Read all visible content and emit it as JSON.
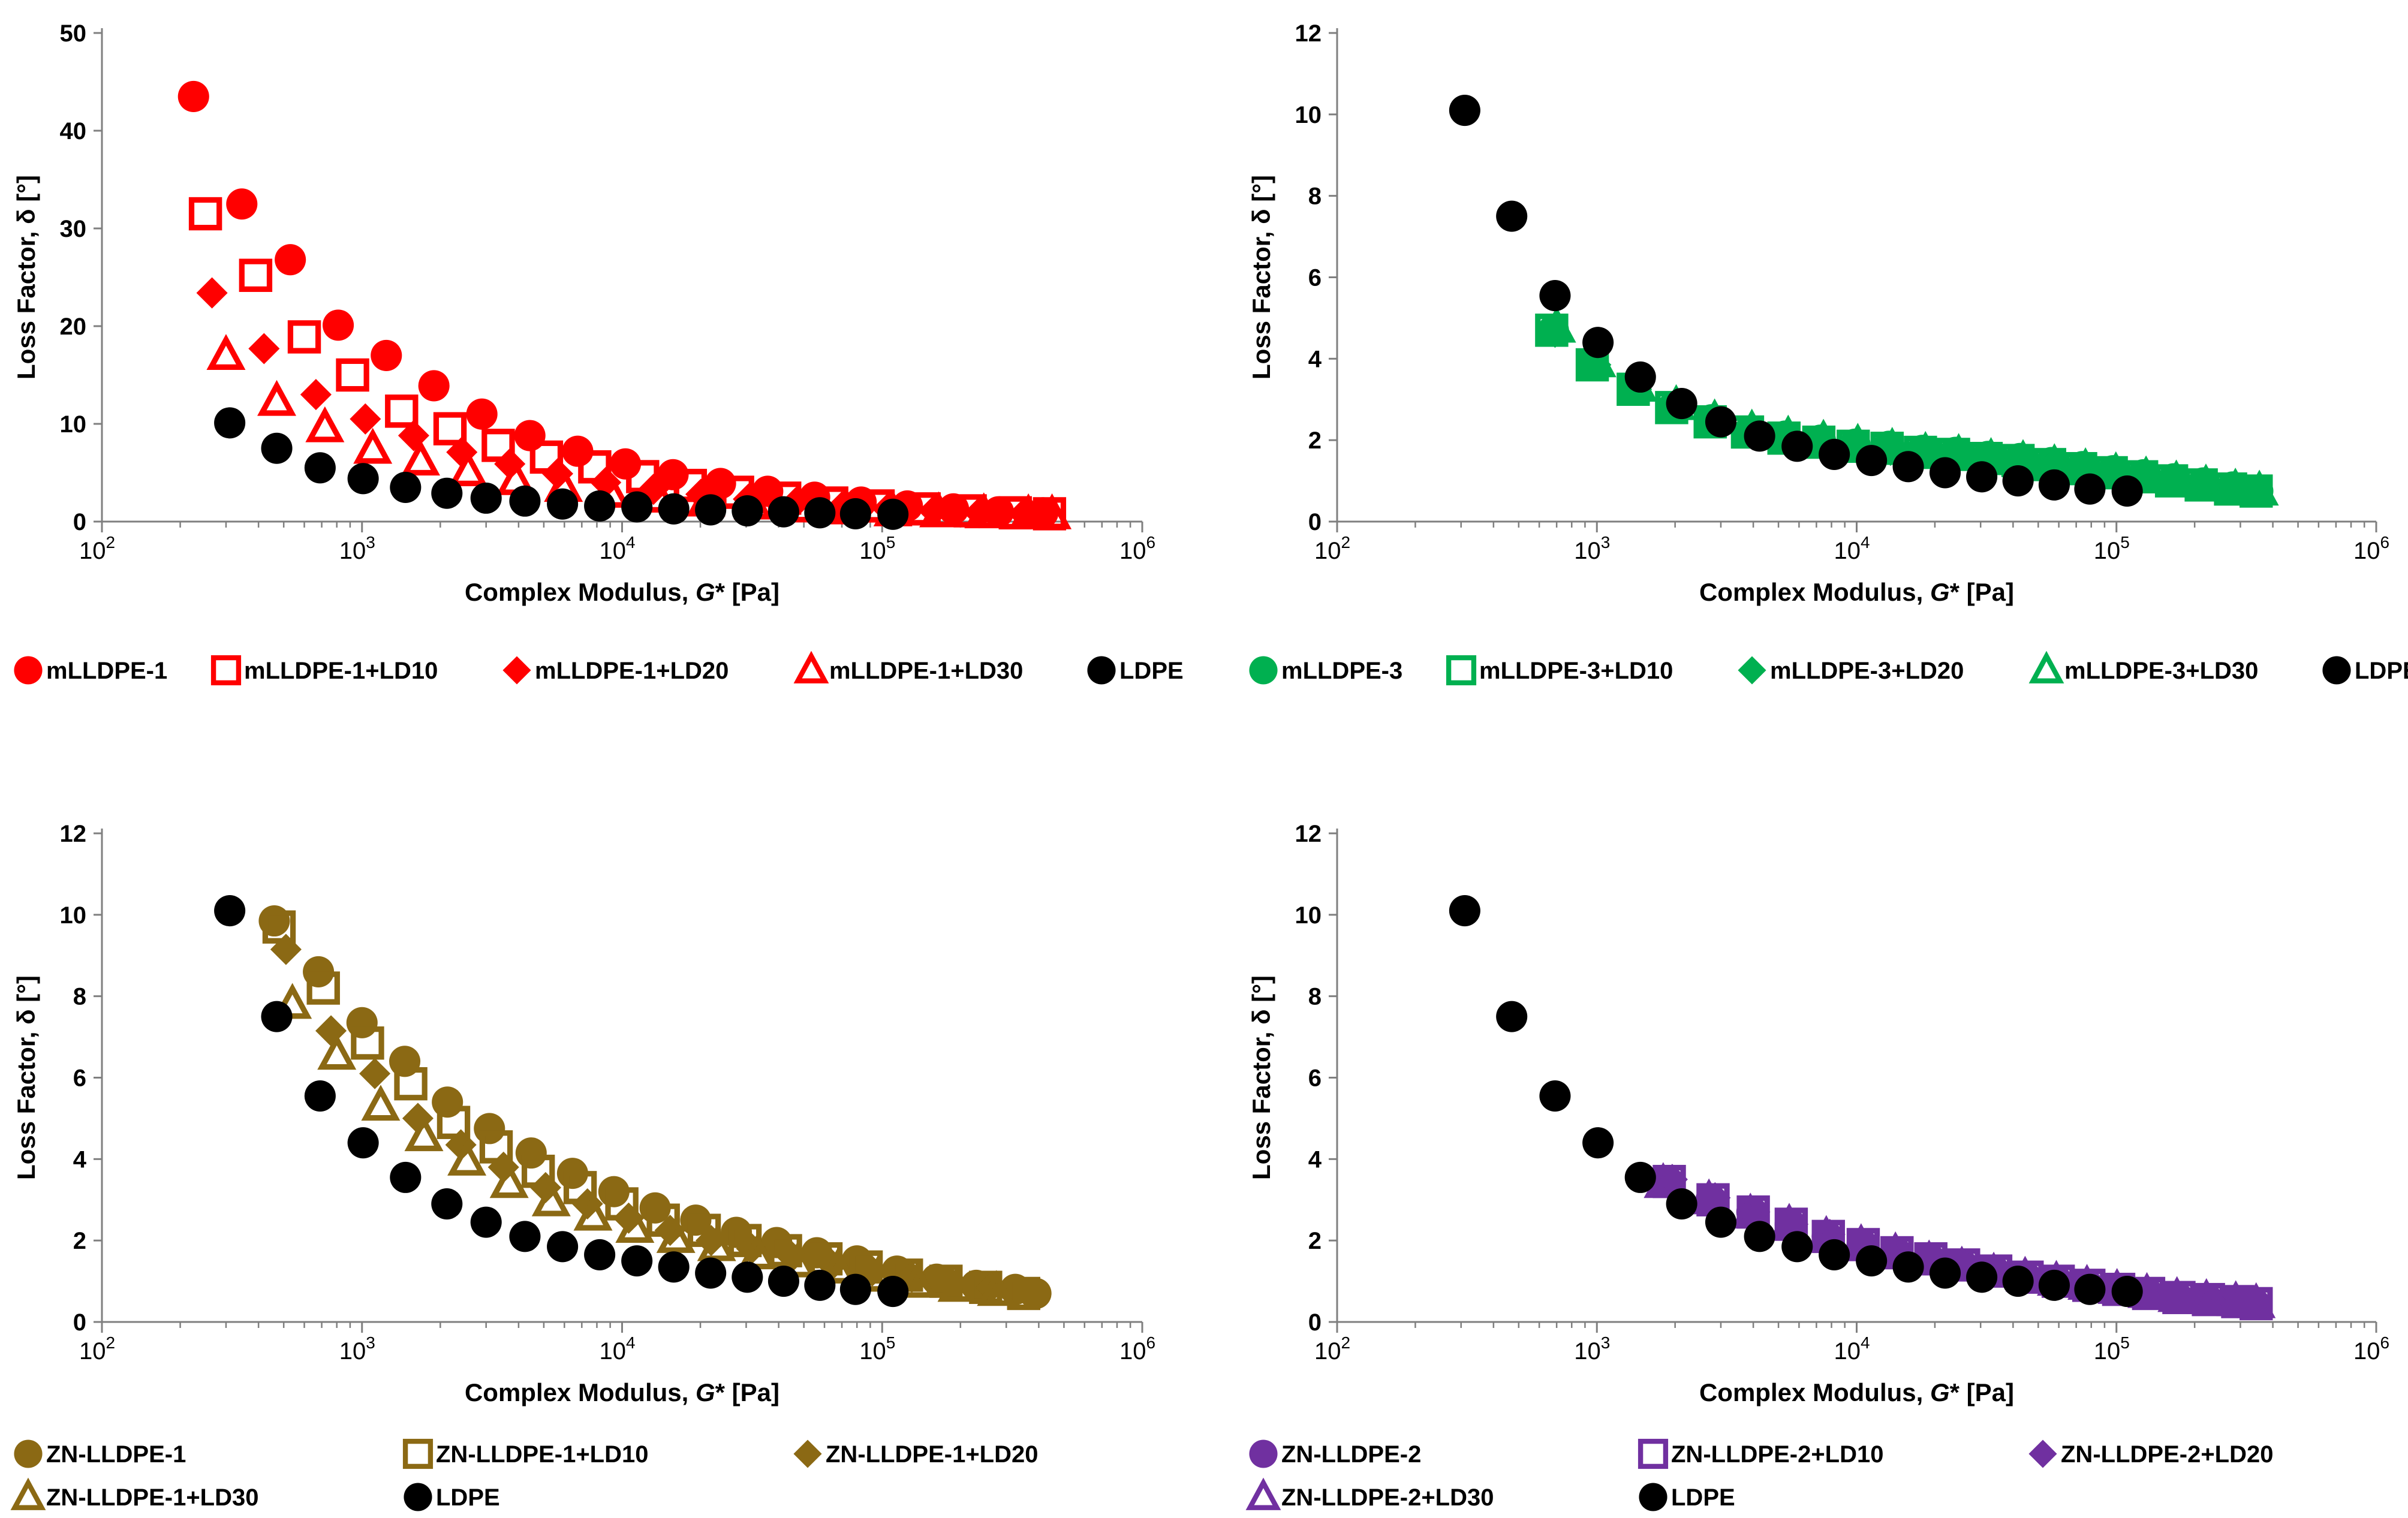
{
  "axes": {
    "xlabel_prefix": "Complex Modulus, ",
    "xlabel_var": "G",
    "xlabel_suffix": "* [Pa]",
    "ylabel": "Loss Factor, δ [°]",
    "x_tick_base": "10",
    "x_tick_exponents": [
      "2",
      "3",
      "4",
      "5",
      "6"
    ]
  },
  "chart_data": [
    {
      "type": "scatter",
      "panel": "top-left",
      "xscale": "log",
      "xlim": [
        100,
        1000000
      ],
      "ylim": [
        0,
        50
      ],
      "yticks": [
        0,
        10,
        20,
        30,
        40,
        50
      ],
      "xlabel": "Complex Modulus, G* [Pa]",
      "ylabel": "Loss Factor, δ [°]",
      "legend_columns": 5,
      "series": [
        {
          "name": "mLLDPE-1",
          "color": "#ff0000",
          "marker": "circle",
          "x": [
            225,
            345,
            530,
            810,
            1240,
            1890,
            2890,
            4420,
            6750,
            10300,
            15700,
            23900,
            36300,
            55000,
            83000,
            125000,
            188000,
            280000,
            415000
          ],
          "y": [
            43.5,
            32.5,
            26.8,
            20.1,
            17.0,
            13.9,
            11.0,
            8.8,
            7.2,
            5.9,
            4.8,
            3.9,
            3.1,
            2.5,
            2.0,
            1.6,
            1.3,
            1.0,
            0.9
          ]
        },
        {
          "name": "mLLDPE-1+LD10",
          "color": "#ff0000",
          "marker": "square-open",
          "x": [
            250,
            390,
            600,
            920,
            1420,
            2180,
            3340,
            5120,
            7850,
            12000,
            18300,
            27800,
            42200,
            64000,
            96500,
            145000,
            218000,
            325000,
            440000
          ],
          "y": [
            31.5,
            25.2,
            18.9,
            15.0,
            11.3,
            9.5,
            7.8,
            6.6,
            5.6,
            4.6,
            3.7,
            3.0,
            2.4,
            1.9,
            1.6,
            1.3,
            1.1,
            0.9,
            0.8
          ]
        },
        {
          "name": "mLLDPE-1+LD20",
          "color": "#ff0000",
          "marker": "diamond",
          "x": [
            265,
            420,
            665,
            1030,
            1580,
            2420,
            3700,
            5650,
            8650,
            13200,
            20100,
            30600,
            46400,
            70000,
            105000,
            158000,
            236000,
            350000
          ],
          "y": [
            23.4,
            17.7,
            13.0,
            10.5,
            8.8,
            7.1,
            5.9,
            4.9,
            4.0,
            3.3,
            2.8,
            2.3,
            1.9,
            1.5,
            1.3,
            1.1,
            0.9,
            0.8
          ]
        },
        {
          "name": "mLLDPE-1+LD30",
          "color": "#ff0000",
          "marker": "triangle-open",
          "x": [
            300,
            470,
            720,
            1100,
            1680,
            2560,
            3900,
            5950,
            9050,
            13800,
            21000,
            31900,
            48300,
            73000,
            110000,
            165000,
            246000,
            365000,
            450000
          ],
          "y": [
            17.0,
            12.3,
            9.6,
            7.4,
            6.2,
            5.1,
            4.2,
            3.5,
            2.9,
            2.4,
            2.0,
            1.7,
            1.4,
            1.2,
            1.0,
            0.9,
            0.8,
            0.7,
            0.7
          ]
        },
        {
          "name": "LDPE",
          "color": "#000000",
          "marker": "circle",
          "x": [
            310,
            470,
            690,
            1010,
            1470,
            2120,
            3000,
            4230,
            5900,
            8200,
            11400,
            15800,
            21900,
            30300,
            41800,
            57600,
            79000,
            110000
          ],
          "y": [
            10.1,
            7.5,
            5.5,
            4.4,
            3.5,
            2.9,
            2.4,
            2.1,
            1.8,
            1.6,
            1.5,
            1.3,
            1.2,
            1.1,
            1.0,
            0.9,
            0.8,
            0.75
          ]
        }
      ]
    },
    {
      "type": "scatter",
      "panel": "top-right",
      "xscale": "log",
      "xlim": [
        100,
        1000000
      ],
      "ylim": [
        0,
        12
      ],
      "yticks": [
        0,
        2,
        4,
        6,
        8,
        10,
        12
      ],
      "xlabel": "Complex Modulus, G* [Pa]",
      "ylabel": "Loss Factor, δ [°]",
      "legend_columns": 5,
      "series": [
        {
          "name": "mLLDPE-3",
          "color": "#00b050",
          "marker": "circle",
          "x": [
            680,
            970,
            1400,
            1960,
            2760,
            3840,
            5300,
            7250,
            9850,
            13300,
            17900,
            24000,
            32000,
            42500,
            56200,
            74000,
            97000,
            127000,
            166000,
            216000,
            280000,
            350000
          ],
          "y": [
            4.7,
            3.9,
            3.3,
            2.8,
            2.5,
            2.2,
            2.1,
            2.0,
            1.9,
            1.85,
            1.75,
            1.7,
            1.6,
            1.55,
            1.45,
            1.35,
            1.25,
            1.15,
            1.05,
            0.95,
            0.85,
            0.75
          ]
        },
        {
          "name": "mLLDPE-3+LD10",
          "color": "#00b050",
          "marker": "square-open",
          "x": [
            670,
            960,
            1380,
            1940,
            2730,
            3800,
            5250,
            7150,
            9700,
            13100,
            17600,
            23600,
            31500,
            41800,
            55300,
            72800,
            95500,
            125000,
            163000,
            212000,
            275000,
            345000
          ],
          "y": [
            4.7,
            3.85,
            3.25,
            2.8,
            2.45,
            2.2,
            2.05,
            1.95,
            1.85,
            1.8,
            1.7,
            1.65,
            1.55,
            1.5,
            1.4,
            1.3,
            1.2,
            1.1,
            1.0,
            0.9,
            0.8,
            0.75
          ]
        },
        {
          "name": "mLLDPE-3+LD20",
          "color": "#00b050",
          "marker": "diamond",
          "x": [
            690,
            990,
            1420,
            1990,
            2800,
            3900,
            5380,
            7350,
            9990,
            13500,
            18200,
            24400,
            32500,
            43200,
            57000,
            75200,
            98500,
            129000,
            168000,
            219000,
            284000
          ],
          "y": [
            4.65,
            3.85,
            3.25,
            2.8,
            2.45,
            2.2,
            2.05,
            1.95,
            1.85,
            1.75,
            1.7,
            1.65,
            1.55,
            1.5,
            1.4,
            1.3,
            1.2,
            1.1,
            1.0,
            0.9,
            0.8
          ]
        },
        {
          "name": "mLLDPE-3+LD30",
          "color": "#00b050",
          "marker": "triangle-open",
          "x": [
            700,
            1000,
            1440,
            2020,
            2840,
            3950,
            5450,
            7450,
            10100,
            13700,
            18400,
            24700,
            32900,
            43700,
            57700,
            76000,
            99500,
            130000,
            170000,
            221000,
            287000,
            355000
          ],
          "y": [
            4.75,
            3.9,
            3.3,
            2.85,
            2.5,
            2.25,
            2.1,
            2.0,
            1.9,
            1.8,
            1.7,
            1.65,
            1.55,
            1.5,
            1.4,
            1.3,
            1.2,
            1.1,
            1.0,
            0.9,
            0.8,
            0.75
          ]
        },
        {
          "name": "LDPE",
          "color": "#000000",
          "marker": "circle",
          "x": [
            310,
            470,
            690,
            1010,
            1470,
            2120,
            3000,
            4230,
            5900,
            8200,
            11400,
            15800,
            21900,
            30300,
            41800,
            57600,
            79000,
            110000
          ],
          "y": [
            10.1,
            7.5,
            5.55,
            4.4,
            3.55,
            2.9,
            2.45,
            2.1,
            1.85,
            1.65,
            1.5,
            1.35,
            1.2,
            1.1,
            1.0,
            0.9,
            0.8,
            0.75
          ]
        }
      ]
    },
    {
      "type": "scatter",
      "panel": "bottom-left",
      "xscale": "log",
      "xlim": [
        100,
        1000000
      ],
      "ylim": [
        0,
        12
      ],
      "yticks": [
        0,
        2,
        4,
        6,
        8,
        10,
        12
      ],
      "xlabel": "Complex Modulus, G* [Pa]",
      "ylabel": "Loss Factor, δ [°]",
      "legend_columns": 3,
      "series": [
        {
          "name": "ZN-LLDPE-1",
          "color": "#8b6914",
          "marker": "circle",
          "x": [
            460,
            680,
            1000,
            1460,
            2130,
            3090,
            4470,
            6450,
            9300,
            13400,
            19200,
            27500,
            39300,
            56100,
            80000,
            114000,
            162000,
            230000,
            325000,
            390000
          ],
          "y": [
            9.85,
            8.6,
            7.35,
            6.4,
            5.4,
            4.75,
            4.15,
            3.65,
            3.2,
            2.8,
            2.5,
            2.2,
            1.95,
            1.7,
            1.5,
            1.25,
            1.05,
            0.9,
            0.8,
            0.7
          ]
        },
        {
          "name": "ZN-LLDPE-1+LD10",
          "color": "#8b6914",
          "marker": "square-open",
          "x": [
            480,
            710,
            1050,
            1540,
            2250,
            3280,
            4760,
            6900,
            9980,
            14400,
            20700,
            29700,
            42500,
            60800,
            86800,
            124000,
            176000,
            250000,
            350000
          ],
          "y": [
            9.7,
            8.2,
            6.85,
            5.85,
            4.9,
            4.3,
            3.7,
            3.3,
            2.9,
            2.5,
            2.25,
            2.0,
            1.75,
            1.55,
            1.35,
            1.15,
            1.0,
            0.85,
            0.7
          ]
        },
        {
          "name": "ZN-LLDPE-1+LD20",
          "color": "#8b6914",
          "marker": "diamond",
          "x": [
            510,
            760,
            1120,
            1640,
            2400,
            3500,
            5080,
            7360,
            10600,
            15300,
            22000,
            31500,
            45000,
            64200,
            91500,
            130000,
            185000,
            262000,
            365000
          ],
          "y": [
            9.15,
            7.15,
            6.1,
            5.0,
            4.35,
            3.8,
            3.3,
            2.9,
            2.55,
            2.25,
            2.0,
            1.8,
            1.6,
            1.4,
            1.25,
            1.1,
            0.95,
            0.85,
            0.7
          ]
        },
        {
          "name": "ZN-LLDPE-1+LD30",
          "color": "#8b6914",
          "marker": "triangle-open",
          "x": [
            540,
            800,
            1180,
            1730,
            2530,
            3680,
            5340,
            7730,
            11200,
            16100,
            23100,
            33100,
            47300,
            67500,
            96000,
            136000,
            194000,
            275000
          ],
          "y": [
            7.8,
            6.55,
            5.3,
            4.55,
            3.95,
            3.4,
            2.95,
            2.6,
            2.3,
            2.05,
            1.85,
            1.65,
            1.45,
            1.3,
            1.1,
            0.95,
            0.85,
            0.75
          ]
        },
        {
          "name": "LDPE",
          "color": "#000000",
          "marker": "circle",
          "x": [
            310,
            470,
            690,
            1010,
            1470,
            2120,
            3000,
            4230,
            5900,
            8200,
            11400,
            15800,
            21900,
            30300,
            41800,
            57600,
            79000,
            110000
          ],
          "y": [
            10.1,
            7.5,
            5.55,
            4.4,
            3.55,
            2.9,
            2.45,
            2.1,
            1.85,
            1.65,
            1.5,
            1.35,
            1.2,
            1.1,
            1.0,
            0.9,
            0.8,
            0.75
          ]
        }
      ]
    },
    {
      "type": "scatter",
      "panel": "bottom-right",
      "xscale": "log",
      "xlim": [
        100,
        1000000
      ],
      "ylim": [
        0,
        12
      ],
      "yticks": [
        0,
        2,
        4,
        6,
        8,
        10,
        12
      ],
      "xlabel": "Complex Modulus, G* [Pa]",
      "ylabel": "Loss Factor, δ [°]",
      "legend_columns": 3,
      "series": [
        {
          "name": "ZN-LLDPE-2",
          "color": "#7030a0",
          "marker": "circle",
          "x": [
            1850,
            2750,
            3950,
            5550,
            7700,
            10500,
            14200,
            19100,
            25500,
            33900,
            44800,
            59000,
            77400,
            101000,
            132000,
            172000,
            224000,
            290000,
            340000
          ],
          "y": [
            3.45,
            3.0,
            2.7,
            2.4,
            2.1,
            1.9,
            1.7,
            1.55,
            1.4,
            1.25,
            1.1,
            1.0,
            0.9,
            0.8,
            0.7,
            0.6,
            0.55,
            0.5,
            0.45
          ]
        },
        {
          "name": "ZN-LLDPE-2+LD10",
          "color": "#7030a0",
          "marker": "square-open",
          "x": [
            1900,
            2800,
            4000,
            5600,
            7780,
            10600,
            14300,
            19300,
            25800,
            34300,
            45300,
            59700,
            78300,
            102000,
            133000,
            174000,
            226000,
            293000,
            345000
          ],
          "y": [
            3.45,
            3.0,
            2.7,
            2.4,
            2.1,
            1.9,
            1.7,
            1.55,
            1.4,
            1.25,
            1.1,
            1.0,
            0.9,
            0.8,
            0.7,
            0.6,
            0.55,
            0.5,
            0.45
          ]
        },
        {
          "name": "ZN-LLDPE-2+LD20",
          "color": "#7030a0",
          "marker": "diamond",
          "x": [
            1950,
            2850,
            4050,
            5680,
            7880,
            10700,
            14500,
            19500,
            26100,
            34700,
            45800,
            60400,
            79200,
            103000,
            135000,
            176000,
            229000,
            296000
          ],
          "y": [
            3.5,
            3.05,
            2.7,
            2.4,
            2.15,
            1.9,
            1.7,
            1.55,
            1.4,
            1.25,
            1.1,
            1.0,
            0.9,
            0.8,
            0.7,
            0.6,
            0.55,
            0.5
          ]
        },
        {
          "name": "ZN-LLDPE-2+LD30",
          "color": "#7030a0",
          "marker": "triangle-open",
          "x": [
            1800,
            2700,
            3900,
            5500,
            7640,
            10400,
            14100,
            19000,
            25400,
            33700,
            44500,
            58700,
            77000,
            100500,
            131000,
            171000,
            222000,
            288000,
            345000
          ],
          "y": [
            3.4,
            3.0,
            2.65,
            2.4,
            2.1,
            1.9,
            1.7,
            1.5,
            1.35,
            1.2,
            1.1,
            1.0,
            0.9,
            0.8,
            0.7,
            0.6,
            0.55,
            0.5,
            0.45
          ]
        },
        {
          "name": "LDPE",
          "color": "#000000",
          "marker": "circle",
          "x": [
            310,
            470,
            690,
            1010,
            1470,
            2120,
            3000,
            4230,
            5900,
            8200,
            11400,
            15800,
            21900,
            30300,
            41800,
            57600,
            79000,
            110000
          ],
          "y": [
            10.1,
            7.5,
            5.55,
            4.4,
            3.55,
            2.9,
            2.45,
            2.1,
            1.85,
            1.65,
            1.5,
            1.35,
            1.2,
            1.1,
            1.0,
            0.9,
            0.8,
            0.75
          ]
        }
      ]
    }
  ]
}
